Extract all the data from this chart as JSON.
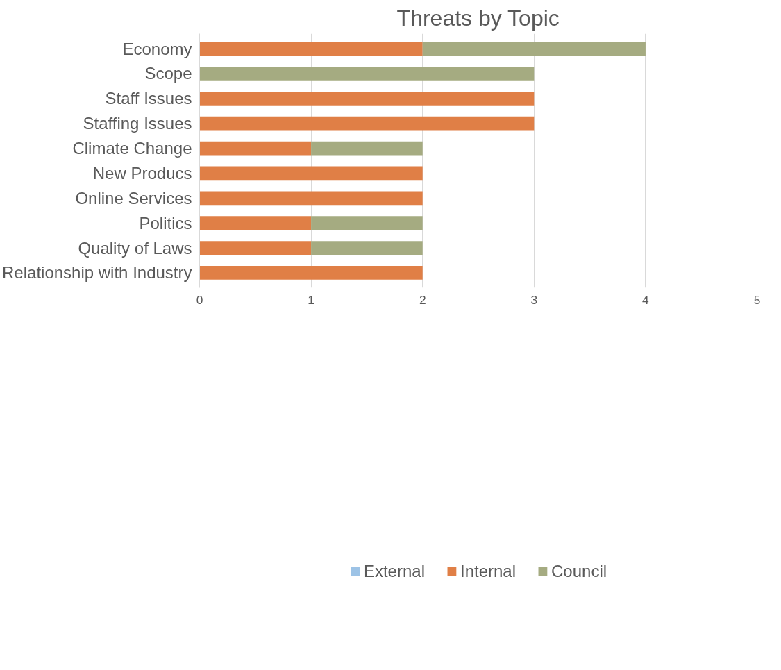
{
  "chart_data": {
    "type": "bar",
    "orientation": "horizontal",
    "stacked": true,
    "title": "Threats by Topic",
    "categories": [
      "Economy",
      "Scope",
      "Staff Issues",
      "Staffing Issues",
      "Climate Change",
      "New Producs",
      "Online Services",
      "Politics",
      "Quality of Laws",
      "Relationship with Industry"
    ],
    "series": [
      {
        "name": "External",
        "color": "#9dc3e6",
        "values": [
          0,
          0,
          0,
          0,
          0,
          0,
          0,
          0,
          0,
          0
        ]
      },
      {
        "name": "Internal",
        "color": "#e07f46",
        "values": [
          2,
          0,
          3,
          3,
          1,
          2,
          2,
          1,
          1,
          2
        ]
      },
      {
        "name": "Council",
        "color": "#a5ab81",
        "values": [
          2,
          3,
          0,
          0,
          1,
          0,
          0,
          1,
          1,
          0
        ]
      }
    ],
    "xlim": [
      0,
      5
    ],
    "xticks": [
      0,
      1,
      2,
      3,
      4,
      5
    ],
    "grid": "x",
    "legend": "bottom"
  }
}
